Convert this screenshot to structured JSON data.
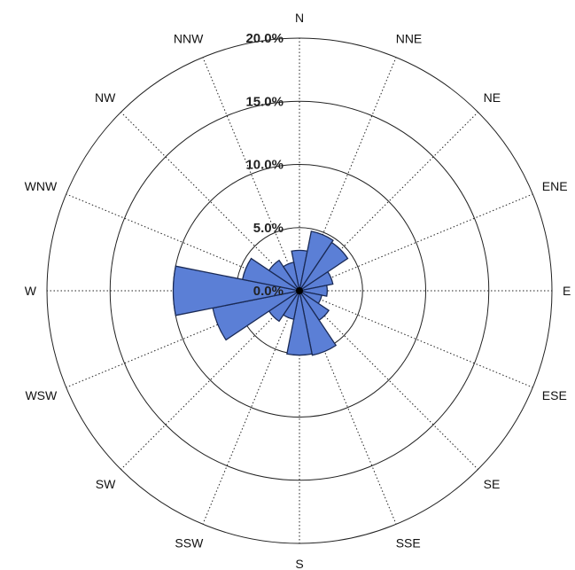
{
  "chart_data": {
    "type": "wind-rose",
    "title": "",
    "petal_color": "#5b7fd6",
    "radial_axis": {
      "max": 20.0,
      "ticks": [
        0,
        5,
        10,
        15,
        20
      ],
      "tick_labels": [
        "0.0%",
        "5.0%",
        "10.0%",
        "15.0%",
        "20.0%"
      ],
      "unit": "%"
    },
    "directions": [
      "N",
      "NNE",
      "NE",
      "ENE",
      "E",
      "ESE",
      "SE",
      "SSE",
      "S",
      "SSW",
      "SW",
      "WSW",
      "W",
      "WNW",
      "NW",
      "NNW"
    ],
    "values": [
      3.2,
      4.8,
      4.6,
      2.7,
      2.2,
      1.8,
      2.8,
      5.2,
      5.1,
      2.3,
      2.9,
      7.0,
      10.0,
      4.6,
      2.9,
      2.3
    ]
  }
}
